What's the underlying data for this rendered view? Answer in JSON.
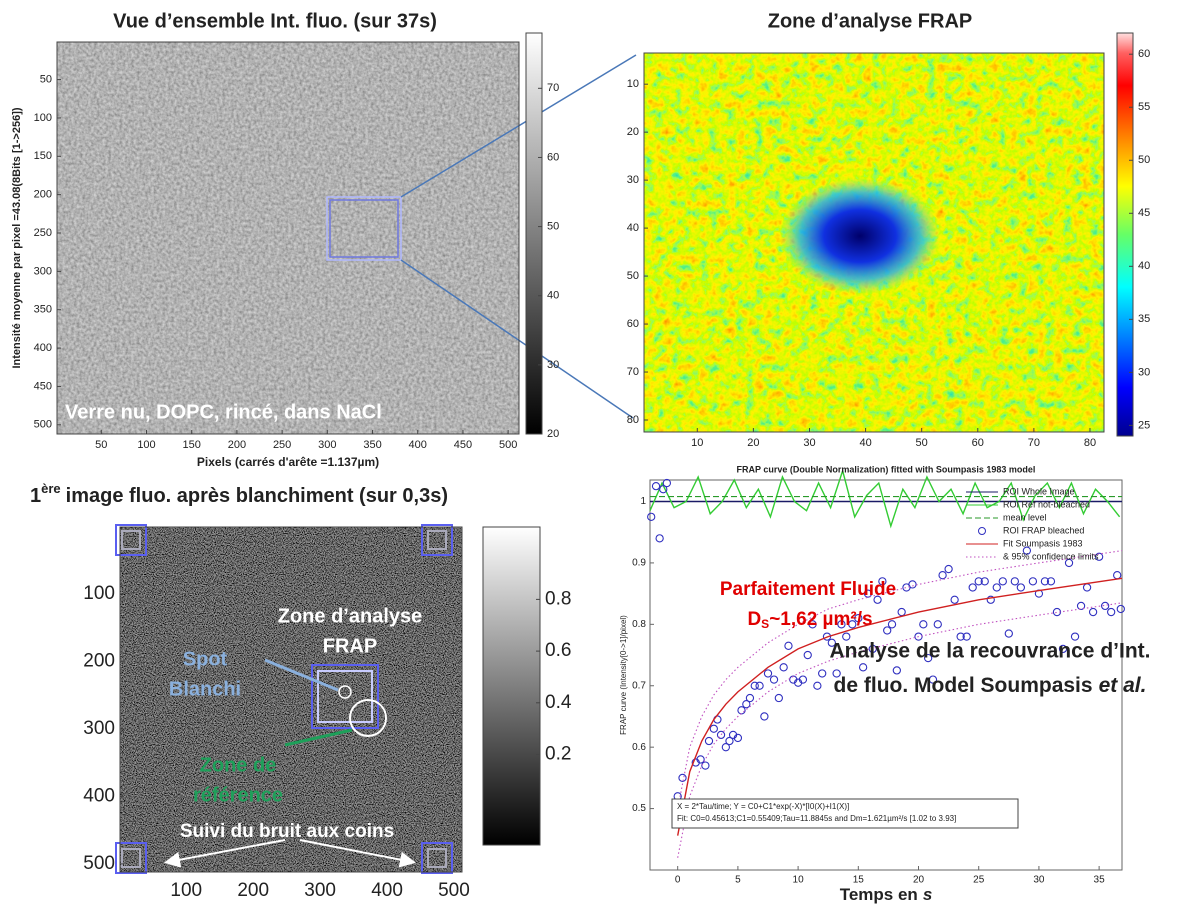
{
  "chart_data": [
    {
      "type": "image",
      "title": "Vue d’ensemble Int. fluo. (sur 37s)",
      "xlabel": "Pixels (carrés d'arête =1.137µm)",
      "ylabel": "Intensité moyenne par pixel =43.08(8Bits [1->256])",
      "xlim": [
        1,
        512
      ],
      "ylim": [
        1,
        512
      ],
      "yreverse": true,
      "xticks": [
        50,
        100,
        150,
        200,
        250,
        300,
        350,
        400,
        450,
        500
      ],
      "yticks": [
        50,
        100,
        150,
        200,
        250,
        300,
        350,
        400,
        450,
        500
      ],
      "colormap": "gray",
      "colorbar": {
        "lim": [
          20,
          78
        ],
        "ticks": [
          20,
          30,
          40,
          50,
          60,
          70
        ]
      },
      "annotation": "Verre nu, DOPC, rincé, dans NaCl"
    },
    {
      "type": "image",
      "title": "Zone d’analyse FRAP",
      "xlim": [
        0.5,
        82.5
      ],
      "ylim": [
        3.5,
        82.5
      ],
      "yreverse": true,
      "xticks": [
        10,
        20,
        30,
        40,
        50,
        60,
        70,
        80
      ],
      "yticks": [
        10,
        20,
        30,
        40,
        50,
        60,
        70,
        80
      ],
      "colormap": "jet",
      "colorbar": {
        "lim": [
          24,
          62
        ],
        "ticks": [
          25,
          30,
          35,
          40,
          45,
          50,
          55,
          60
        ]
      }
    },
    {
      "type": "image",
      "title": {
        "number": "1",
        "suffix": "ère",
        "text": "image fluo. après blanchiment (sur 0,3s)"
      },
      "xlim": [
        1,
        512
      ],
      "ylim": [
        1,
        512
      ],
      "yreverse": true,
      "xticks": [
        100,
        200,
        300,
        400,
        500
      ],
      "yticks": [
        100,
        200,
        300,
        400,
        500
      ],
      "colormap": "gray",
      "colorbar": {
        "lim": [
          -0.15,
          1.08
        ],
        "ticks": [
          0.2,
          0.4,
          0.6,
          0.8
        ]
      },
      "annotations": {
        "zone": [
          "Zone d’analyse",
          "FRAP"
        ],
        "spot": [
          "Spot",
          "Blanchi"
        ],
        "reference": [
          "Zone de",
          "référence"
        ],
        "corners": "Suivi du bruit aux coins"
      }
    },
    {
      "type": "frap",
      "title": "FRAP curve (Double Normalization) fitted with Soumpasis 1983 model",
      "xlabel": {
        "text": "Temps en",
        "italic": "s"
      },
      "ylabel": "FRAP curve (Intensity[0->1]/pixel)",
      "xlim": [
        -2.3,
        36.9
      ],
      "ylim": [
        0.4,
        1.035
      ],
      "xticks": [
        0,
        5,
        10,
        15,
        20,
        25,
        30,
        35
      ],
      "yticks": [
        0.5,
        0.6,
        0.7,
        0.8,
        0.9,
        1
      ],
      "series": [
        {
          "name": "ROI Whole Image",
          "color": "#1a1a66",
          "style": "solid",
          "x": [
            -2.3,
            36.9
          ],
          "values": [
            1,
            1
          ]
        },
        {
          "name": "ROI Ref not-bleached",
          "color": "#33cc33",
          "style": "solid",
          "x": [
            -2.3,
            -1.3,
            -0.3,
            0.7,
            1.7,
            2.7,
            3.7,
            4.7,
            5.7,
            6.7,
            7.7,
            8.7,
            9.7,
            10.7,
            11.7,
            12.7,
            13.7,
            14.7,
            15.7,
            16.7,
            17.7,
            18.7,
            19.7,
            20.7,
            21.7,
            22.7,
            23.7,
            24.7,
            25.7,
            26.7,
            27.7,
            28.7,
            29.7,
            30.7,
            31.7,
            32.7,
            33.7,
            34.7,
            35.7,
            36.7
          ],
          "values": [
            0.985,
            1.03,
            0.99,
            1.0,
            1.04,
            0.98,
            1.0,
            1.035,
            0.99,
            1.02,
            0.975,
            1.04,
            1.0,
            0.985,
            1.03,
            0.99,
            1.05,
            0.975,
            1.01,
            1.03,
            0.96,
            1.02,
            0.99,
            1.04,
            1.0,
            1.02,
            0.98,
            1.03,
            0.99,
            1.0,
            1.03,
            0.97,
            1.01,
            1.03,
            0.99,
            1.03,
            0.98,
            1.02,
            1.0,
            0.975
          ]
        },
        {
          "name": "mean level",
          "color": "#2a9a2a",
          "style": "dashed",
          "x": [
            -2.3,
            36.9
          ],
          "values": [
            1.008,
            1.008
          ]
        },
        {
          "name": "ROI FRAP bleached",
          "color": "#3030c0",
          "style": "none",
          "marker": "circle",
          "x": [
            -2.2,
            -1.8,
            -1.5,
            -1.2,
            -0.9,
            0,
            0.4,
            0.8,
            1.1,
            1.5,
            1.9,
            2.3,
            2.6,
            3,
            3.3,
            3.6,
            4,
            4.3,
            4.6,
            5,
            5.3,
            5.7,
            6,
            6.4,
            6.8,
            7.2,
            7.5,
            8,
            8.4,
            8.8,
            9.2,
            9.6,
            10,
            10.4,
            10.8,
            11.2,
            11.6,
            12,
            12.4,
            12.8,
            13.2,
            13.6,
            14,
            14.5,
            15,
            15.4,
            15.8,
            16.2,
            16.6,
            17,
            17.4,
            17.8,
            18.2,
            18.6,
            19,
            19.5,
            20,
            20.4,
            20.8,
            21.2,
            21.6,
            22,
            22.5,
            23,
            23.5,
            24,
            24.5,
            25,
            25.5,
            26,
            26.5,
            27,
            27.5,
            28,
            28.5,
            29,
            29.5,
            30,
            30.5,
            31,
            31.5,
            32,
            32.5,
            33,
            33.5,
            34,
            34.5,
            35,
            35.5,
            36,
            36.5,
            36.8
          ],
          "values": [
            0.975,
            1.025,
            0.94,
            1.02,
            1.03,
            0.52,
            0.55,
            0.49,
            0.505,
            0.575,
            0.58,
            0.57,
            0.61,
            0.63,
            0.645,
            0.62,
            0.6,
            0.61,
            0.62,
            0.615,
            0.66,
            0.67,
            0.68,
            0.7,
            0.7,
            0.65,
            0.72,
            0.71,
            0.68,
            0.73,
            0.765,
            0.71,
            0.705,
            0.71,
            0.75,
            0.8,
            0.7,
            0.72,
            0.78,
            0.77,
            0.72,
            0.8,
            0.78,
            0.8,
            0.81,
            0.73,
            0.85,
            0.76,
            0.84,
            0.87,
            0.79,
            0.8,
            0.725,
            0.82,
            0.86,
            0.865,
            0.78,
            0.8,
            0.745,
            0.71,
            0.8,
            0.88,
            0.89,
            0.84,
            0.78,
            0.78,
            0.86,
            0.87,
            0.87,
            0.84,
            0.86,
            0.87,
            0.785,
            0.87,
            0.86,
            0.92,
            0.87,
            0.85,
            0.87,
            0.87,
            0.82,
            0.76,
            0.9,
            0.78,
            0.83,
            0.86,
            0.82,
            0.91,
            0.83,
            0.82,
            0.88,
            0.825
          ]
        },
        {
          "name": "Fit Soumpasis 1983",
          "color": "#d02020",
          "style": "solid",
          "x": [
            0,
            1,
            2,
            3,
            4,
            5,
            7.5,
            10,
            12.5,
            15,
            20,
            25,
            30,
            36.9
          ],
          "values": [
            0.456,
            0.56,
            0.61,
            0.645,
            0.67,
            0.69,
            0.73,
            0.76,
            0.78,
            0.795,
            0.82,
            0.84,
            0.855,
            0.875
          ]
        },
        {
          "name": "& 95% confidence limits",
          "color": "#c050c0",
          "style": "dotted",
          "x": [
            0,
            1,
            2,
            3,
            4,
            5,
            7.5,
            10,
            12.5,
            15,
            20,
            25,
            30,
            36.9
          ],
          "values": [
            0.5,
            0.6,
            0.65,
            0.685,
            0.71,
            0.73,
            0.77,
            0.8,
            0.825,
            0.84,
            0.865,
            0.885,
            0.9,
            0.92
          ]
        },
        {
          "color": "#c050c0",
          "style": "dotted",
          "x": [
            0,
            1,
            2,
            3,
            4,
            5,
            7.5,
            10,
            12.5,
            15,
            20,
            25,
            30,
            36.9
          ],
          "values": [
            0.42,
            0.52,
            0.57,
            0.605,
            0.63,
            0.65,
            0.69,
            0.72,
            0.74,
            0.755,
            0.78,
            0.8,
            0.815,
            0.835
          ]
        }
      ],
      "annotations": {
        "fluid": "Parfaitement Fluide",
        "ds": {
          "main": "D",
          "sub": "S",
          "text": "~1,62 µm²/s"
        },
        "analysis": {
          "line1": "Analyse de la recouvrance d’Int.",
          "line2": "de fluo. Model Soumpasis",
          "italic": "et al."
        },
        "fitbox": [
          "X = 2*Tau/time; Y = C0+C1*exp(-X)*[I0(X)+I1(X)]",
          "Fit: C0=0.45613;C1=0.55409;Tau=11.8845s and Dm=1.621µm²/s [1.02 to 3.93]"
        ]
      }
    }
  ]
}
